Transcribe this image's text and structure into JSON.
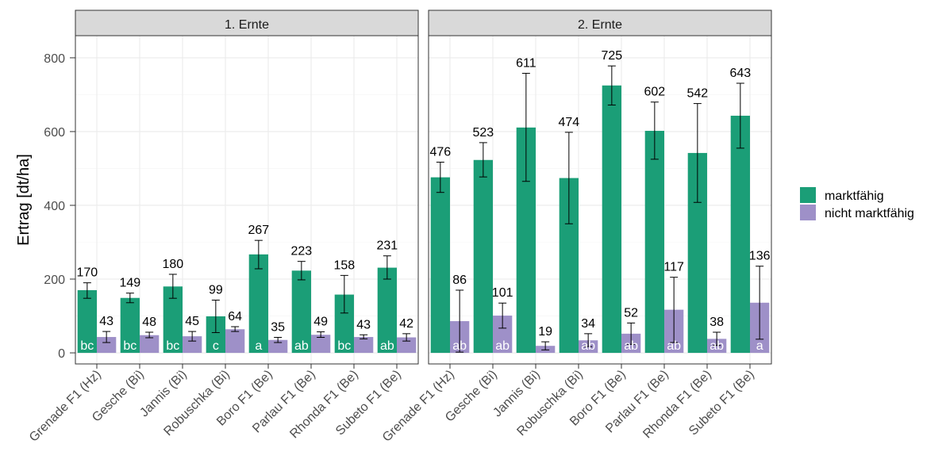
{
  "chart_data": {
    "type": "bar",
    "ylabel": "Ertrag  [dt/ha]",
    "xlabel": "",
    "ylim": [
      -30,
      860
    ],
    "yticks": [
      0,
      200,
      400,
      600,
      800
    ],
    "grid": true,
    "legend_position": "right",
    "colors": {
      "marktfaehig": "#1b9e77",
      "nicht_marktfaehig": "#9e90c8"
    },
    "categories": [
      "Grenade F1 (Hz)",
      "Gesche (Bi)",
      "Jannis (Bi)",
      "Robuschka (Bi)",
      "Boro F1 (Be)",
      "Parlau F1 (Be)",
      "Rhonda F1 (Be)",
      "Subeto F1 (Be)"
    ],
    "series_names": [
      "marktfähig",
      "nicht marktfähig"
    ],
    "panels": [
      {
        "title": "1. Ernte",
        "series": [
          {
            "name": "marktfähig",
            "values": [
              170,
              149,
              180,
              99,
              267,
              223,
              158,
              231
            ],
            "error_low": [
              148,
              136,
              148,
              55,
              228,
              198,
              108,
              200
            ],
            "error_high": [
              190,
              162,
              213,
              143,
              305,
              248,
              210,
              263
            ],
            "letters": [
              "bc",
              "bc",
              "bc",
              "c",
              "a",
              "ab",
              "bc",
              "ab"
            ]
          },
          {
            "name": "nicht marktfähig",
            "values": [
              43,
              48,
              45,
              64,
              35,
              49,
              43,
              42
            ],
            "error_low": [
              28,
              41,
              32,
              58,
              28,
              42,
              38,
              32
            ],
            "error_high": [
              58,
              56,
              58,
              71,
              42,
              57,
              49,
              52
            ],
            "letters": [
              "",
              "",
              "",
              "",
              "",
              "",
              "",
              ""
            ]
          }
        ]
      },
      {
        "title": "2. Ernte",
        "series": [
          {
            "name": "marktfähig",
            "values": [
              476,
              523,
              611,
              474,
              725,
              602,
              542,
              643
            ],
            "error_low": [
              435,
              477,
              465,
              350,
              672,
              525,
              408,
              555
            ],
            "error_high": [
              517,
              570,
              758,
              598,
              778,
              680,
              676,
              731
            ],
            "letters": [
              "",
              "",
              "",
              "",
              "",
              "",
              "",
              ""
            ]
          },
          {
            "name": "nicht marktfähig",
            "values": [
              86,
              101,
              19,
              34,
              52,
              117,
              38,
              136
            ],
            "error_low": [
              2,
              67,
              8,
              17,
              23,
              28,
              20,
              37
            ],
            "error_high": [
              170,
              135,
              30,
              52,
              81,
              205,
              56,
              235
            ],
            "letters": [
              "ab",
              "ab",
              "",
              "ab",
              "ab",
              "ab",
              "ab",
              "a"
            ]
          }
        ]
      }
    ]
  }
}
